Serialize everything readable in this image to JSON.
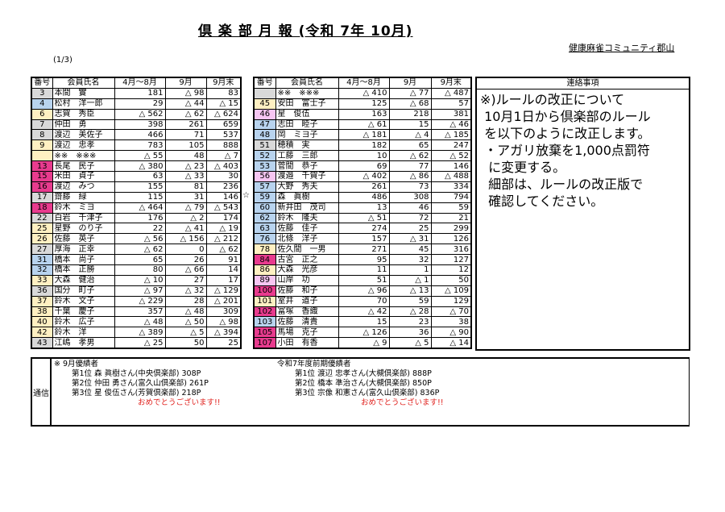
{
  "header": {
    "title": "倶 楽 部 月 報 (令和 7年  10月)",
    "org": "健康麻雀コミュニティ郡山",
    "page": "(1/3)"
  },
  "columns": [
    "番号",
    "会員氏名",
    "4月～8月",
    "9月",
    "9月末"
  ],
  "row_colors": {
    "g": "#d9d9d9",
    "b": "#b8d3ee",
    "y": "#fff0c2",
    "m": "#e83b8e",
    "p": "#f7c6f2"
  },
  "left_table": [
    [
      "3",
      "本間　實",
      "181",
      "△ 98",
      "83",
      "g"
    ],
    [
      "4",
      "松村　洋一郎",
      "29",
      "△ 44",
      "△ 15",
      "b"
    ],
    [
      "6",
      "志賀　秀臣",
      "△ 562",
      "△ 62",
      "△ 624",
      "y"
    ],
    [
      "7",
      "仲田　勇",
      "398",
      "261",
      "659",
      "g"
    ],
    [
      "8",
      "渡辺　美佐子",
      "466",
      "71",
      "537",
      "g"
    ],
    [
      "9",
      "渡辺　忠孝",
      "783",
      "105",
      "888",
      "y"
    ],
    [
      "",
      "※※　※※※",
      "△ 55",
      "48",
      "△ 7",
      "y"
    ],
    [
      "13",
      "長尾　民子",
      "△ 380",
      "△ 23",
      "△ 403",
      "m"
    ],
    [
      "15",
      "米田　貞子",
      "63",
      "△ 33",
      "30",
      "m"
    ],
    [
      "16",
      "渡辺　みつ",
      "155",
      "81",
      "236",
      "m"
    ],
    [
      "17",
      "齋藤　緑",
      "115",
      "31",
      "146",
      "g"
    ],
    [
      "18",
      "鈴木　ミヨ",
      "△ 464",
      "△ 79",
      "△ 543",
      "m"
    ],
    [
      "22",
      "白岩　千津子",
      "176",
      "△ 2",
      "174",
      "g"
    ],
    [
      "25",
      "星野　のり子",
      "22",
      "△ 41",
      "△ 19",
      "y"
    ],
    [
      "26",
      "佐藤　英子",
      "△ 56",
      "△ 156",
      "△ 212",
      "y"
    ],
    [
      "27",
      "厚海　正幸",
      "△ 62",
      "0",
      "△ 62",
      "g"
    ],
    [
      "31",
      "橋本　尚子",
      "65",
      "26",
      "91",
      "b"
    ],
    [
      "32",
      "橋本　正勝",
      "80",
      "△ 66",
      "14",
      "b"
    ],
    [
      "33",
      "大森　健治",
      "△ 10",
      "27",
      "17",
      "y"
    ],
    [
      "36",
      "国分　町子",
      "△ 97",
      "△ 32",
      "△ 129",
      "g"
    ],
    [
      "37",
      "鈴木　文子",
      "△ 229",
      "28",
      "△ 201",
      "y"
    ],
    [
      "38",
      "千葉　慶子",
      "357",
      "△ 48",
      "309",
      "y"
    ],
    [
      "40",
      "鈴木　広子",
      "△ 48",
      "△ 50",
      "△ 98",
      "y"
    ],
    [
      "42",
      "鈴木　洋",
      "△ 389",
      "△ 5",
      "△ 394",
      "y"
    ],
    [
      "43",
      "江嶋　孝男",
      "△ 25",
      "50",
      "25",
      "g"
    ]
  ],
  "right_table": [
    [
      "",
      "※※　※※※",
      "△ 410",
      "△ 77",
      "△ 487",
      "g"
    ],
    [
      "45",
      "安田　富士子",
      "125",
      "△ 68",
      "57",
      "y"
    ],
    [
      "46",
      "星　俊伍",
      "163",
      "218",
      "381",
      "p"
    ],
    [
      "47",
      "志田　睦子",
      "△ 61",
      "15",
      "△ 46",
      "b"
    ],
    [
      "48",
      "岡　ミヨ子",
      "△ 181",
      "△ 4",
      "△ 185",
      "b"
    ],
    [
      "51",
      "穂積　実",
      "182",
      "65",
      "247",
      "g"
    ],
    [
      "52",
      "工藤　三郎",
      "10",
      "△ 62",
      "△ 52",
      "b"
    ],
    [
      "53",
      "菅間　恭子",
      "69",
      "77",
      "146",
      "b"
    ],
    [
      "56",
      "渡邉　千賀子",
      "△ 402",
      "△ 86",
      "△ 488",
      "p"
    ],
    [
      "57",
      "大野　秀夫",
      "261",
      "73",
      "334",
      "b"
    ],
    [
      "59",
      "森　眞樹",
      "486",
      "308",
      "794",
      "b"
    ],
    [
      "60",
      "新井田　茂司",
      "13",
      "46",
      "59",
      "b"
    ],
    [
      "62",
      "鈴木　隆夫",
      "△ 51",
      "72",
      "21",
      "b"
    ],
    [
      "63",
      "佐藤　佳子",
      "274",
      "25",
      "299",
      "b"
    ],
    [
      "76",
      "北條　洋子",
      "157",
      "△ 31",
      "126",
      "b"
    ],
    [
      "78",
      "佐久間　一男",
      "271",
      "45",
      "316",
      "y"
    ],
    [
      "84",
      "古宮　正之",
      "95",
      "32",
      "127",
      "m"
    ],
    [
      "86",
      "大森　光彦",
      "11",
      "1",
      "12",
      "y"
    ],
    [
      "89",
      "山岸　功",
      "51",
      "△ 1",
      "50",
      "p"
    ],
    [
      "100",
      "佐藤　和子",
      "△ 96",
      "△ 13",
      "△ 109",
      "m"
    ],
    [
      "101",
      "室井　道子",
      "70",
      "59",
      "129",
      "y"
    ],
    [
      "102",
      "冨塚　香織",
      "△ 42",
      "△ 28",
      "△ 70",
      "m"
    ],
    [
      "103",
      "佐藤　清貴",
      "15",
      "23",
      "38",
      "b"
    ],
    [
      "105",
      "馬場　克子",
      "△ 126",
      "36",
      "△ 90",
      "m"
    ],
    [
      "107",
      "小田　有香",
      "△ 9",
      "△ 5",
      "△ 14",
      "m"
    ]
  ],
  "star_marker": "☆",
  "notes": {
    "heading": "連絡事項",
    "body": "※)ルールの改正について\n 10月1日から倶楽部のルール\n を以下のように改正します。\n ・アガリ放棄を1,000点罰符\n  に変更する。\n  細部は、ルールの改正版で\n  確認してください。"
  },
  "communication": {
    "label": "通信",
    "monthly": {
      "heading": "※  9月優績者",
      "lines": [
        "第1位  森 眞樹さん(中央倶楽部) 308P",
        "第2位  仲田 勇さん(富久山倶楽部) 261P",
        "第3位  星 俊伍さん(芳賀倶楽部) 218P"
      ],
      "congrats": "おめでとうございます!!"
    },
    "season": {
      "heading": "令和7年度前期優績者",
      "lines": [
        "第1位  渡辺 忠孝さん(大槻倶楽部) 888P",
        "第2位  橋本 準治さん(大槻倶楽部) 850P",
        "第3位  宗像 和憲さん(富久山倶楽部) 836P"
      ],
      "congrats": "おめでとうございます!!"
    },
    "highlight_color": "#e0201c"
  }
}
